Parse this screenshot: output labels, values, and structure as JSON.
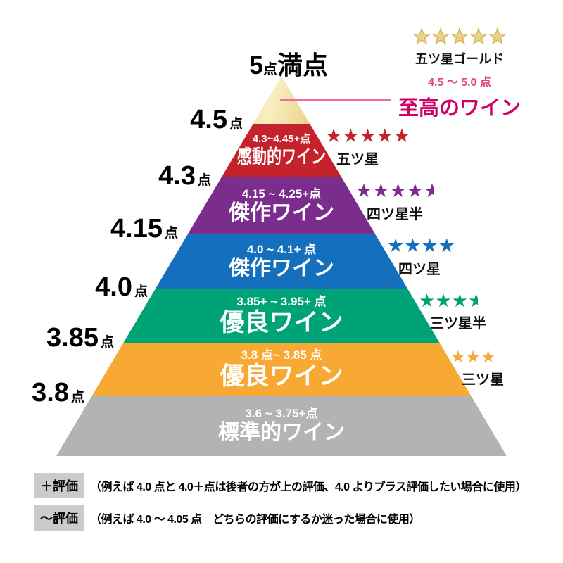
{
  "apex_label": {
    "score": "5",
    "unit": "点",
    "suffix": "満点"
  },
  "left_labels": [
    {
      "value": "4.5",
      "unit": "点"
    },
    {
      "value": "4.3",
      "unit": "点"
    },
    {
      "value": "4.15",
      "unit": "点"
    },
    {
      "value": "4.0",
      "unit": "点"
    },
    {
      "value": "3.85",
      "unit": "点"
    },
    {
      "value": "3.8",
      "unit": "点"
    }
  ],
  "pyramid_levels": [
    {
      "id": "supreme",
      "range": "",
      "label": "",
      "color": ""
    },
    {
      "id": "emotional",
      "range": "4.3~4.45+点",
      "label": "感動的ワイン",
      "color": "#c5232c"
    },
    {
      "id": "masterpiece-upper",
      "range": "4.15 ~ 4.25+点",
      "label": "傑作ワイン",
      "color": "#7b2d8e"
    },
    {
      "id": "masterpiece",
      "range": "4.0 ~ 4.1+ 点",
      "label": "傑作ワイン",
      "color": "#1470bd"
    },
    {
      "id": "excellent-upper",
      "range": "3.85+ ~ 3.95+ 点",
      "label": "優良ワイン",
      "color": "#00a376"
    },
    {
      "id": "excellent",
      "range": "3.8 点~ 3.85 点",
      "label": "優良ワイン",
      "color": "#f8a933"
    },
    {
      "id": "standard",
      "range": "3.6 ~ 3.75+点",
      "label": "標準的ワイン",
      "color": "#b3b3b3"
    }
  ],
  "ratings": [
    {
      "stars": 5,
      "half": false,
      "gold": true,
      "color": "#ebd389",
      "label": "五ツ星ゴールド"
    },
    {
      "stars": 5,
      "half": false,
      "gold": false,
      "color": "#c5232c",
      "label": "五ツ星"
    },
    {
      "stars": 4,
      "half": true,
      "gold": false,
      "color": "#7b2d8e",
      "label": "四ツ星半"
    },
    {
      "stars": 4,
      "half": false,
      "gold": false,
      "color": "#1470bd",
      "label": "四ツ星"
    },
    {
      "stars": 3,
      "half": true,
      "gold": false,
      "color": "#00a376",
      "label": "三ツ星半"
    },
    {
      "stars": 3,
      "half": false,
      "gold": false,
      "color": "#f8a933",
      "label": "三ツ星"
    }
  ],
  "supreme": {
    "range": "4.5 ～ 5.0 点",
    "title": "至高のワイン",
    "range_color": "#e4437e",
    "title_color": "#ce0268",
    "line_color": "#ee6aa0"
  },
  "notes": [
    {
      "badge": "＋評価",
      "text": "（例えば 4.0 点と 4.0＋点は後者の方が上の評価、4.0 よりプラス評価したい場合に使用）"
    },
    {
      "badge": "～評価",
      "text": "（例えば 4.0 ～ 4.05 点　どちらの評価にするか迷った場合に使用）"
    }
  ],
  "icons": {
    "star": "★"
  }
}
